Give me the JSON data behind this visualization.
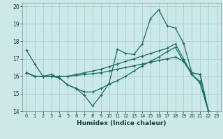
{
  "xlabel": "Humidex (Indice chaleur)",
  "bg_color": "#cce8e8",
  "line_color": "#1a6b6b",
  "grid_color": "#aad4d4",
  "xlim": [
    -0.5,
    23.5
  ],
  "ylim": [
    14,
    20.2
  ],
  "yticks": [
    14,
    15,
    16,
    17,
    18,
    19,
    20
  ],
  "xticks": [
    0,
    1,
    2,
    3,
    4,
    5,
    6,
    7,
    8,
    9,
    10,
    11,
    12,
    13,
    14,
    15,
    16,
    17,
    18,
    19,
    20,
    21,
    22,
    23
  ],
  "line1_x": [
    0,
    1,
    2,
    3,
    4,
    5,
    6,
    7,
    8,
    9,
    10,
    11,
    12,
    13,
    14,
    15,
    16,
    17,
    18,
    19,
    20,
    21,
    22,
    23
  ],
  "line1_y": [
    17.5,
    16.7,
    16.0,
    16.0,
    15.9,
    15.5,
    15.3,
    14.9,
    14.3,
    14.9,
    15.6,
    17.55,
    17.3,
    17.25,
    17.85,
    19.3,
    19.8,
    18.9,
    18.75,
    17.9,
    16.2,
    16.1,
    14.0,
    13.85
  ],
  "line2_x": [
    0,
    1,
    2,
    3,
    4,
    5,
    6,
    7,
    8,
    9,
    10,
    11,
    12,
    13,
    14,
    15,
    16,
    17,
    18,
    19,
    20,
    21,
    22,
    23
  ],
  "line2_y": [
    16.2,
    16.0,
    16.0,
    16.0,
    16.0,
    16.0,
    16.1,
    16.2,
    16.3,
    16.4,
    16.55,
    16.7,
    16.85,
    17.0,
    17.15,
    17.3,
    17.45,
    17.6,
    17.85,
    17.0,
    16.1,
    15.6,
    14.0,
    13.85
  ],
  "line3_x": [
    0,
    1,
    2,
    3,
    4,
    5,
    6,
    7,
    8,
    9,
    10,
    11,
    12,
    13,
    14,
    15,
    16,
    17,
    18,
    19,
    20,
    21,
    22,
    23
  ],
  "line3_y": [
    16.2,
    16.0,
    16.0,
    16.1,
    15.9,
    15.5,
    15.3,
    15.1,
    15.1,
    15.3,
    15.55,
    15.75,
    16.0,
    16.3,
    16.6,
    16.85,
    17.1,
    17.4,
    17.65,
    16.85,
    16.1,
    15.7,
    14.0,
    13.85
  ],
  "line4_x": [
    0,
    1,
    2,
    3,
    4,
    5,
    6,
    7,
    8,
    9,
    10,
    11,
    12,
    13,
    14,
    15,
    16,
    17,
    18,
    19,
    20,
    21,
    22,
    23
  ],
  "line4_y": [
    16.2,
    16.0,
    16.0,
    16.0,
    16.0,
    16.0,
    16.05,
    16.1,
    16.15,
    16.2,
    16.3,
    16.4,
    16.5,
    16.6,
    16.7,
    16.8,
    16.9,
    17.0,
    17.1,
    16.85,
    16.2,
    16.1,
    14.0,
    13.85
  ]
}
